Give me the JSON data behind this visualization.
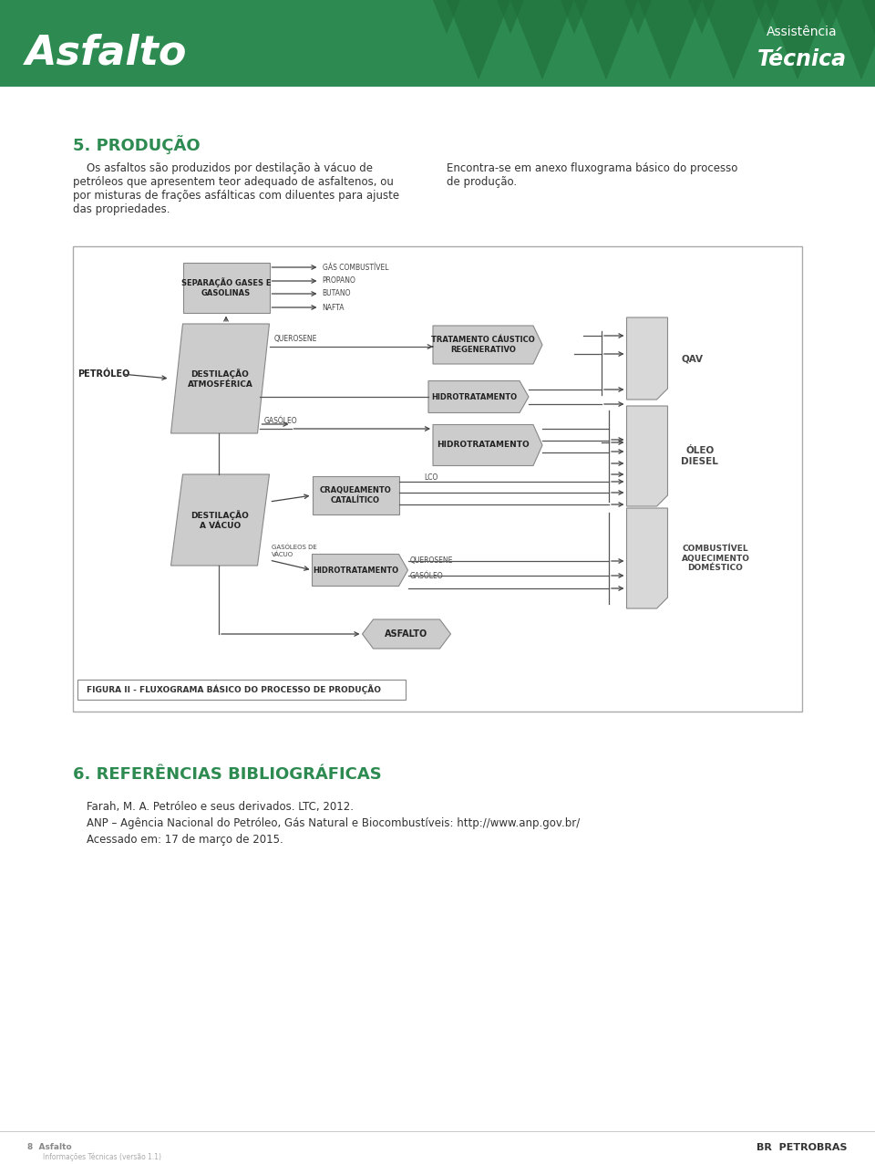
{
  "title": "Asfalto",
  "header_bg": "#2d8a50",
  "header_tri_dark": "#1e6b38",
  "section1_title": "5. PRODUÇÃO",
  "green_color": "#2d8a50",
  "body_text1_lines": [
    "    Os asfaltos são produzidos por destilação à vácuo de",
    "petróleos que apresentem teor adequado de asfaltenos, ou",
    "por misturas de frações asfálticas com diluentes para ajuste",
    "das propriedades."
  ],
  "body_text2_lines": [
    "Encontra-se em anexo fluxograma básico do processo",
    "de produção."
  ],
  "fig_caption": "FIGURA II - FLUXOGRAMA BÁSICO DO PROCESSO DE PRODUÇÃO",
  "section2_title": "6. REFERÊNCIAS BIBLIOGRÁFICAS",
  "ref1": "Farah, M. A. Petróleo e seus derivados. LTC, 2012.",
  "ref2": "ANP – Agência Nacional do Petróleo, Gás Natural e Biocombustíveis: http://www.anp.gov.br/",
  "ref3": "Acessado em: 17 de março de 2015.",
  "box_fill": "#cccccc",
  "box_fill2": "#d8d8d8",
  "box_edge": "#888888",
  "text_dark": "#222222",
  "text_gray": "#555555",
  "fig_bg": "#ffffff",
  "fig_border": "#aaaaaa"
}
